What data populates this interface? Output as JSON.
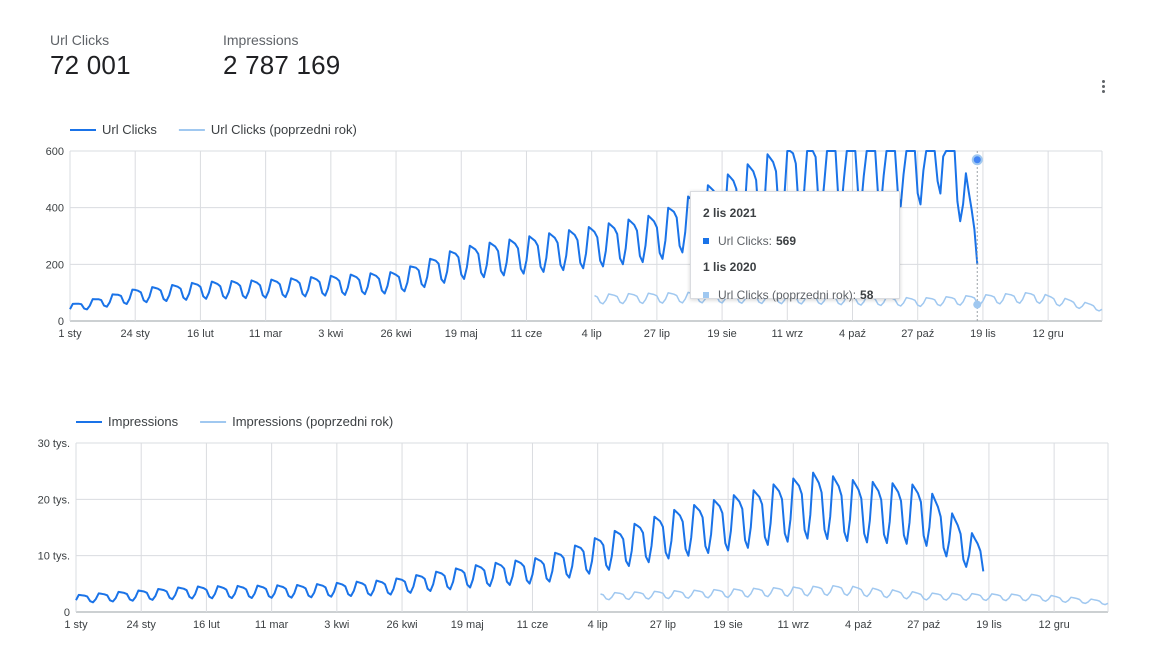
{
  "scorecards": [
    {
      "label": "Url Clicks",
      "value": "72 001"
    },
    {
      "label": "Impressions",
      "value": "2 787 169"
    }
  ],
  "colors": {
    "current": "#1a73e8",
    "previous": "#a0c8f0",
    "grid": "#dadce0",
    "axis": "#9aa0a6"
  },
  "menu_icon": "more-vert-icon",
  "chart_data": [
    {
      "type": "line",
      "legend": [
        "Url Clicks",
        "Url Clicks (poprzedni rok)"
      ],
      "legend_position": "top-left",
      "x_ticks": [
        "1 sty",
        "24 sty",
        "16 lut",
        "11 mar",
        "3 kwi",
        "26 kwi",
        "19 maj",
        "11 cze",
        "4 lip",
        "27 lip",
        "19 sie",
        "11 wrz",
        "4 paź",
        "27 paź",
        "19 lis",
        "12 gru"
      ],
      "y_ticks": [
        {
          "v": 0,
          "label": "0"
        },
        {
          "v": 200,
          "label": "200"
        },
        {
          "v": 400,
          "label": "400"
        },
        {
          "v": 600,
          "label": "600"
        }
      ],
      "ylim": [
        0,
        600
      ],
      "grid": true,
      "series": [
        {
          "name": "Url Clicks",
          "anchors": [
            [
              0,
              40
            ],
            [
              23,
              78
            ],
            [
              46,
              95
            ],
            [
              69,
              100
            ],
            [
              92,
              110
            ],
            [
              115,
              120
            ],
            [
              138,
              180
            ],
            [
              161,
              205
            ],
            [
              184,
              230
            ],
            [
              207,
              260
            ],
            [
              230,
              350
            ],
            [
              253,
              430
            ],
            [
              276,
              490
            ],
            [
              299,
              495
            ],
            [
              322,
              490
            ],
            [
              310,
              569
            ],
            [
              320,
              220
            ]
          ],
          "amp": 0.45,
          "end_day": 320
        },
        {
          "name": "Url Clicks (poprzedni rok)",
          "anchors": [
            [
              185,
              70
            ],
            [
              220,
              75
            ],
            [
              260,
              70
            ],
            [
              300,
              60
            ],
            [
              340,
              75
            ],
            [
              364,
              40
            ]
          ],
          "amp": 0.35,
          "start_day": 185,
          "end_day": 364
        }
      ],
      "tooltip": {
        "date": "2 lis 2021",
        "series_label": "Url Clicks:",
        "series_value": "569",
        "prev_date": "1 lis 2020",
        "prev_label": "Url Clicks (poprzedni rok):",
        "prev_value": "58"
      }
    },
    {
      "type": "line",
      "legend": [
        "Impressions",
        "Impressions (poprzedni rok)"
      ],
      "legend_position": "top-left",
      "x_ticks": [
        "1 sty",
        "24 sty",
        "16 lut",
        "11 mar",
        "3 kwi",
        "26 kwi",
        "19 maj",
        "11 cze",
        "4 lip",
        "27 lip",
        "19 sie",
        "11 wrz",
        "4 paź",
        "27 paź",
        "19 lis",
        "12 gru"
      ],
      "y_ticks": [
        {
          "v": 0,
          "label": "0"
        },
        {
          "v": 10000,
          "label": "10 tys."
        },
        {
          "v": 20000,
          "label": "20 tys."
        },
        {
          "v": 30000,
          "label": "30 tys."
        }
      ],
      "ylim": [
        0,
        30000
      ],
      "grid": true,
      "series": [
        {
          "name": "Impressions",
          "anchors": [
            [
              0,
              2000
            ],
            [
              40,
              3000
            ],
            [
              80,
              3200
            ],
            [
              110,
              3800
            ],
            [
              140,
              5500
            ],
            [
              165,
              6500
            ],
            [
              185,
              9000
            ],
            [
              210,
              12000
            ],
            [
              240,
              14500
            ],
            [
              260,
              16500
            ],
            [
              276,
              15500
            ],
            [
              299,
              15000
            ],
            [
              322,
              14000
            ],
            [
              320,
              8000
            ]
          ],
          "amp": 0.5,
          "end_day": 320
        },
        {
          "name": "Impressions (poprzedni rok)",
          "anchors": [
            [
              185,
              2500
            ],
            [
              230,
              3000
            ],
            [
              270,
              3500
            ],
            [
              300,
              2500
            ],
            [
              340,
              2300
            ],
            [
              364,
              1500
            ]
          ],
          "amp": 0.35,
          "start_day": 185,
          "end_day": 364
        }
      ]
    }
  ]
}
